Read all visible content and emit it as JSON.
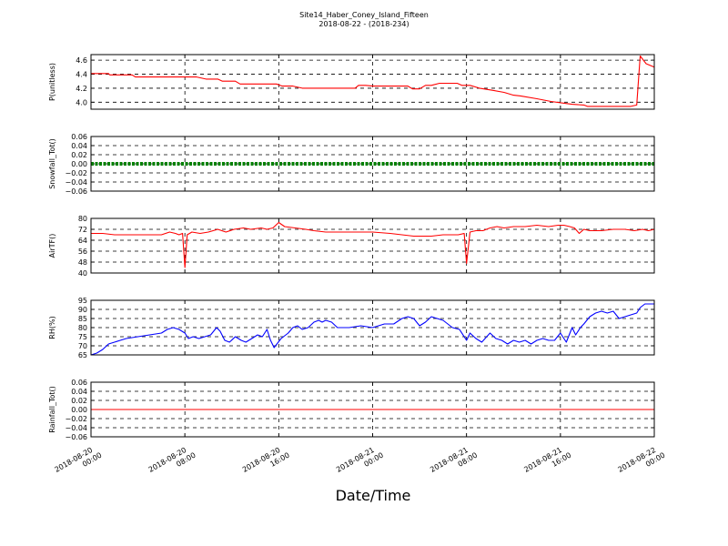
{
  "chart_data": {
    "type": "line",
    "title": "Site14_Haber_Coney_Island_Fifteen",
    "subtitle": "2018-08-22 - (2018-234)",
    "xlabel": "Date/Time",
    "x_range_hours": [
      0,
      48
    ],
    "x_ticks": [
      {
        "hour": 0,
        "label": [
          "2018-08-20",
          "00:00"
        ]
      },
      {
        "hour": 8,
        "label": [
          "2018-08-20",
          "08:00"
        ]
      },
      {
        "hour": 16,
        "label": [
          "2018-08-20",
          "16:00"
        ]
      },
      {
        "hour": 24,
        "label": [
          "2018-08-21",
          "00:00"
        ]
      },
      {
        "hour": 32,
        "label": [
          "2018-08-21",
          "08:00"
        ]
      },
      {
        "hour": 40,
        "label": [
          "2018-08-21",
          "16:00"
        ]
      },
      {
        "hour": 48,
        "label": [
          "2018-08-22",
          "00:00"
        ]
      }
    ],
    "grid": true,
    "panels": [
      {
        "ylabel": "P(unitless)",
        "ylim": [
          3.9,
          4.68
        ],
        "yticks": [
          "4.0",
          "4.2",
          "4.4",
          "4.6"
        ],
        "ytick_values": [
          4.0,
          4.2,
          4.4,
          4.6
        ],
        "color": "#ff0000",
        "marker": false,
        "x": [
          0,
          1.5,
          1.6,
          3.5,
          3.8,
          9.0,
          9.8,
          10.8,
          11.2,
          12.3,
          12.7,
          15.8,
          16.3,
          17.2,
          18.0,
          18.3,
          21.0,
          22.5,
          22.8,
          23.4,
          24.0,
          27.0,
          27.4,
          28.0,
          28.5,
          29.0,
          29.7,
          31.2,
          31.6,
          32.3,
          33.1,
          34.2,
          35.2,
          36.0,
          36.6,
          38.0,
          39.2,
          40.1,
          41.0,
          42.0,
          42.3,
          46.0,
          46.5,
          46.8,
          47.3,
          48.0
        ],
        "y": [
          4.41,
          4.41,
          4.39,
          4.39,
          4.36,
          4.36,
          4.33,
          4.33,
          4.3,
          4.3,
          4.26,
          4.26,
          4.23,
          4.23,
          4.2,
          4.2,
          4.2,
          4.2,
          4.24,
          4.24,
          4.23,
          4.23,
          4.19,
          4.19,
          4.24,
          4.24,
          4.27,
          4.27,
          4.24,
          4.24,
          4.2,
          4.17,
          4.14,
          4.1,
          4.09,
          4.05,
          4.01,
          3.99,
          3.97,
          3.96,
          3.94,
          3.94,
          3.96,
          4.66,
          4.55,
          4.5
        ]
      },
      {
        "ylabel": "Snowfall_Tot()",
        "ylim": [
          -0.06,
          0.06
        ],
        "yticks": [
          "0.06",
          "0.04",
          "0.02",
          "0.00",
          "−0.02",
          "−0.04",
          "−0.06"
        ],
        "ytick_values": [
          0.06,
          0.04,
          0.02,
          0.0,
          -0.02,
          -0.04,
          -0.06
        ],
        "color": "#008000",
        "marker": true,
        "x": [
          0,
          48
        ],
        "y": [
          0.0,
          0.0
        ]
      },
      {
        "ylabel": "AirTF()",
        "ylim": [
          40,
          80
        ],
        "yticks": [
          "80",
          "72",
          "64",
          "56",
          "48",
          "40"
        ],
        "ytick_values": [
          80,
          72,
          64,
          56,
          48,
          40
        ],
        "color": "#ff0000",
        "marker": false,
        "x": [
          0,
          1,
          2,
          3,
          4,
          5,
          6,
          6.7,
          7.2,
          7.5,
          7.8,
          8.0,
          8.2,
          8.6,
          9.3,
          10.0,
          10.8,
          11.5,
          12.2,
          13.0,
          13.6,
          14.5,
          15.0,
          15.5,
          16.0,
          16.5,
          17.4,
          18.3,
          19.0,
          20.0,
          22.0,
          24.0,
          25.5,
          26.5,
          27.5,
          29.0,
          30.0,
          30.8,
          31.3,
          31.8,
          32.0,
          32.3,
          32.8,
          33.4,
          34.0,
          34.6,
          35.2,
          36.0,
          37.0,
          38.0,
          39.0,
          39.8,
          40.3,
          40.8,
          41.2,
          41.6,
          42.0,
          42.5,
          43.5,
          44.5,
          45.5,
          46.3,
          47.0,
          47.5,
          48.0
        ],
        "y": [
          69,
          69,
          68,
          68,
          68,
          68,
          68,
          70,
          69,
          68,
          69,
          44,
          68,
          70,
          69,
          70,
          72,
          70,
          72,
          73,
          72,
          73,
          72,
          73,
          77,
          74,
          73,
          72,
          71,
          70,
          70,
          70,
          69,
          68,
          67,
          67,
          68,
          68,
          68,
          69,
          47,
          70,
          71,
          71,
          73,
          74,
          73,
          74,
          74,
          75,
          74,
          75,
          75,
          74,
          73,
          69,
          72,
          71,
          71,
          72,
          72,
          71,
          72,
          71,
          72
        ]
      },
      {
        "ylabel": "RH(%)",
        "ylim": [
          65,
          95
        ],
        "yticks": [
          "95",
          "90",
          "85",
          "80",
          "75",
          "70",
          "65"
        ],
        "ytick_values": [
          95,
          90,
          85,
          80,
          75,
          70,
          65
        ],
        "color": "#0000ff",
        "marker": false,
        "x": [
          0,
          0.5,
          1.0,
          1.5,
          2.0,
          2.5,
          3.0,
          4.0,
          5.0,
          6.0,
          6.5,
          7.0,
          7.5,
          8.0,
          8.3,
          8.7,
          9.2,
          9.7,
          10.2,
          10.7,
          11.0,
          11.4,
          11.8,
          12.3,
          12.8,
          13.2,
          13.7,
          14.2,
          14.6,
          15.0,
          15.3,
          15.6,
          16.2,
          16.8,
          17.2,
          17.6,
          18.0,
          18.5,
          19.0,
          19.4,
          19.7,
          20.0,
          20.5,
          21.0,
          22.0,
          23.0,
          24.0,
          25.0,
          25.8,
          26.5,
          27.0,
          27.5,
          28.0,
          28.5,
          29.0,
          29.5,
          30.0,
          30.8,
          31.4,
          31.8,
          32.0,
          32.3,
          32.8,
          33.3,
          34.0,
          34.5,
          35.0,
          35.5,
          36.0,
          36.5,
          37.0,
          37.5,
          38.0,
          38.5,
          39.0,
          39.5,
          40.0,
          40.5,
          41.0,
          41.3,
          41.7,
          42.0,
          42.5,
          43.0,
          43.5,
          44.0,
          44.5,
          45.0,
          45.5,
          46.0,
          46.5,
          46.8,
          47.2,
          48.0
        ],
        "y": [
          65,
          66,
          68,
          71,
          72,
          73,
          74,
          75,
          76,
          77,
          79,
          80,
          79,
          77,
          74,
          75,
          74,
          75,
          76,
          80,
          78,
          73,
          72,
          75,
          73,
          72,
          74,
          76,
          75,
          79,
          73,
          69,
          74,
          77,
          80,
          81,
          79,
          80,
          83,
          84,
          83,
          84,
          83,
          80,
          80,
          81,
          80,
          82,
          82,
          85,
          86,
          85,
          81,
          83,
          86,
          85,
          84,
          80,
          79,
          75,
          73,
          77,
          74,
          72,
          77,
          74,
          73,
          71,
          73,
          72,
          73,
          71,
          73,
          74,
          73,
          73,
          77,
          72,
          80,
          76,
          80,
          82,
          86,
          88,
          89,
          88,
          89,
          85,
          86,
          87,
          88,
          91,
          93,
          93
        ]
      },
      {
        "ylabel": "Rainfall_Tot()",
        "ylim": [
          -0.06,
          0.06
        ],
        "yticks": [
          "0.06",
          "0.04",
          "0.02",
          "0.00",
          "−0.02",
          "−0.04",
          "−0.06"
        ],
        "ytick_values": [
          0.06,
          0.04,
          0.02,
          0.0,
          -0.02,
          -0.04,
          -0.06
        ],
        "color": "#ff0000",
        "marker": false,
        "x": [
          0,
          48
        ],
        "y": [
          0.0,
          0.0
        ]
      }
    ]
  }
}
